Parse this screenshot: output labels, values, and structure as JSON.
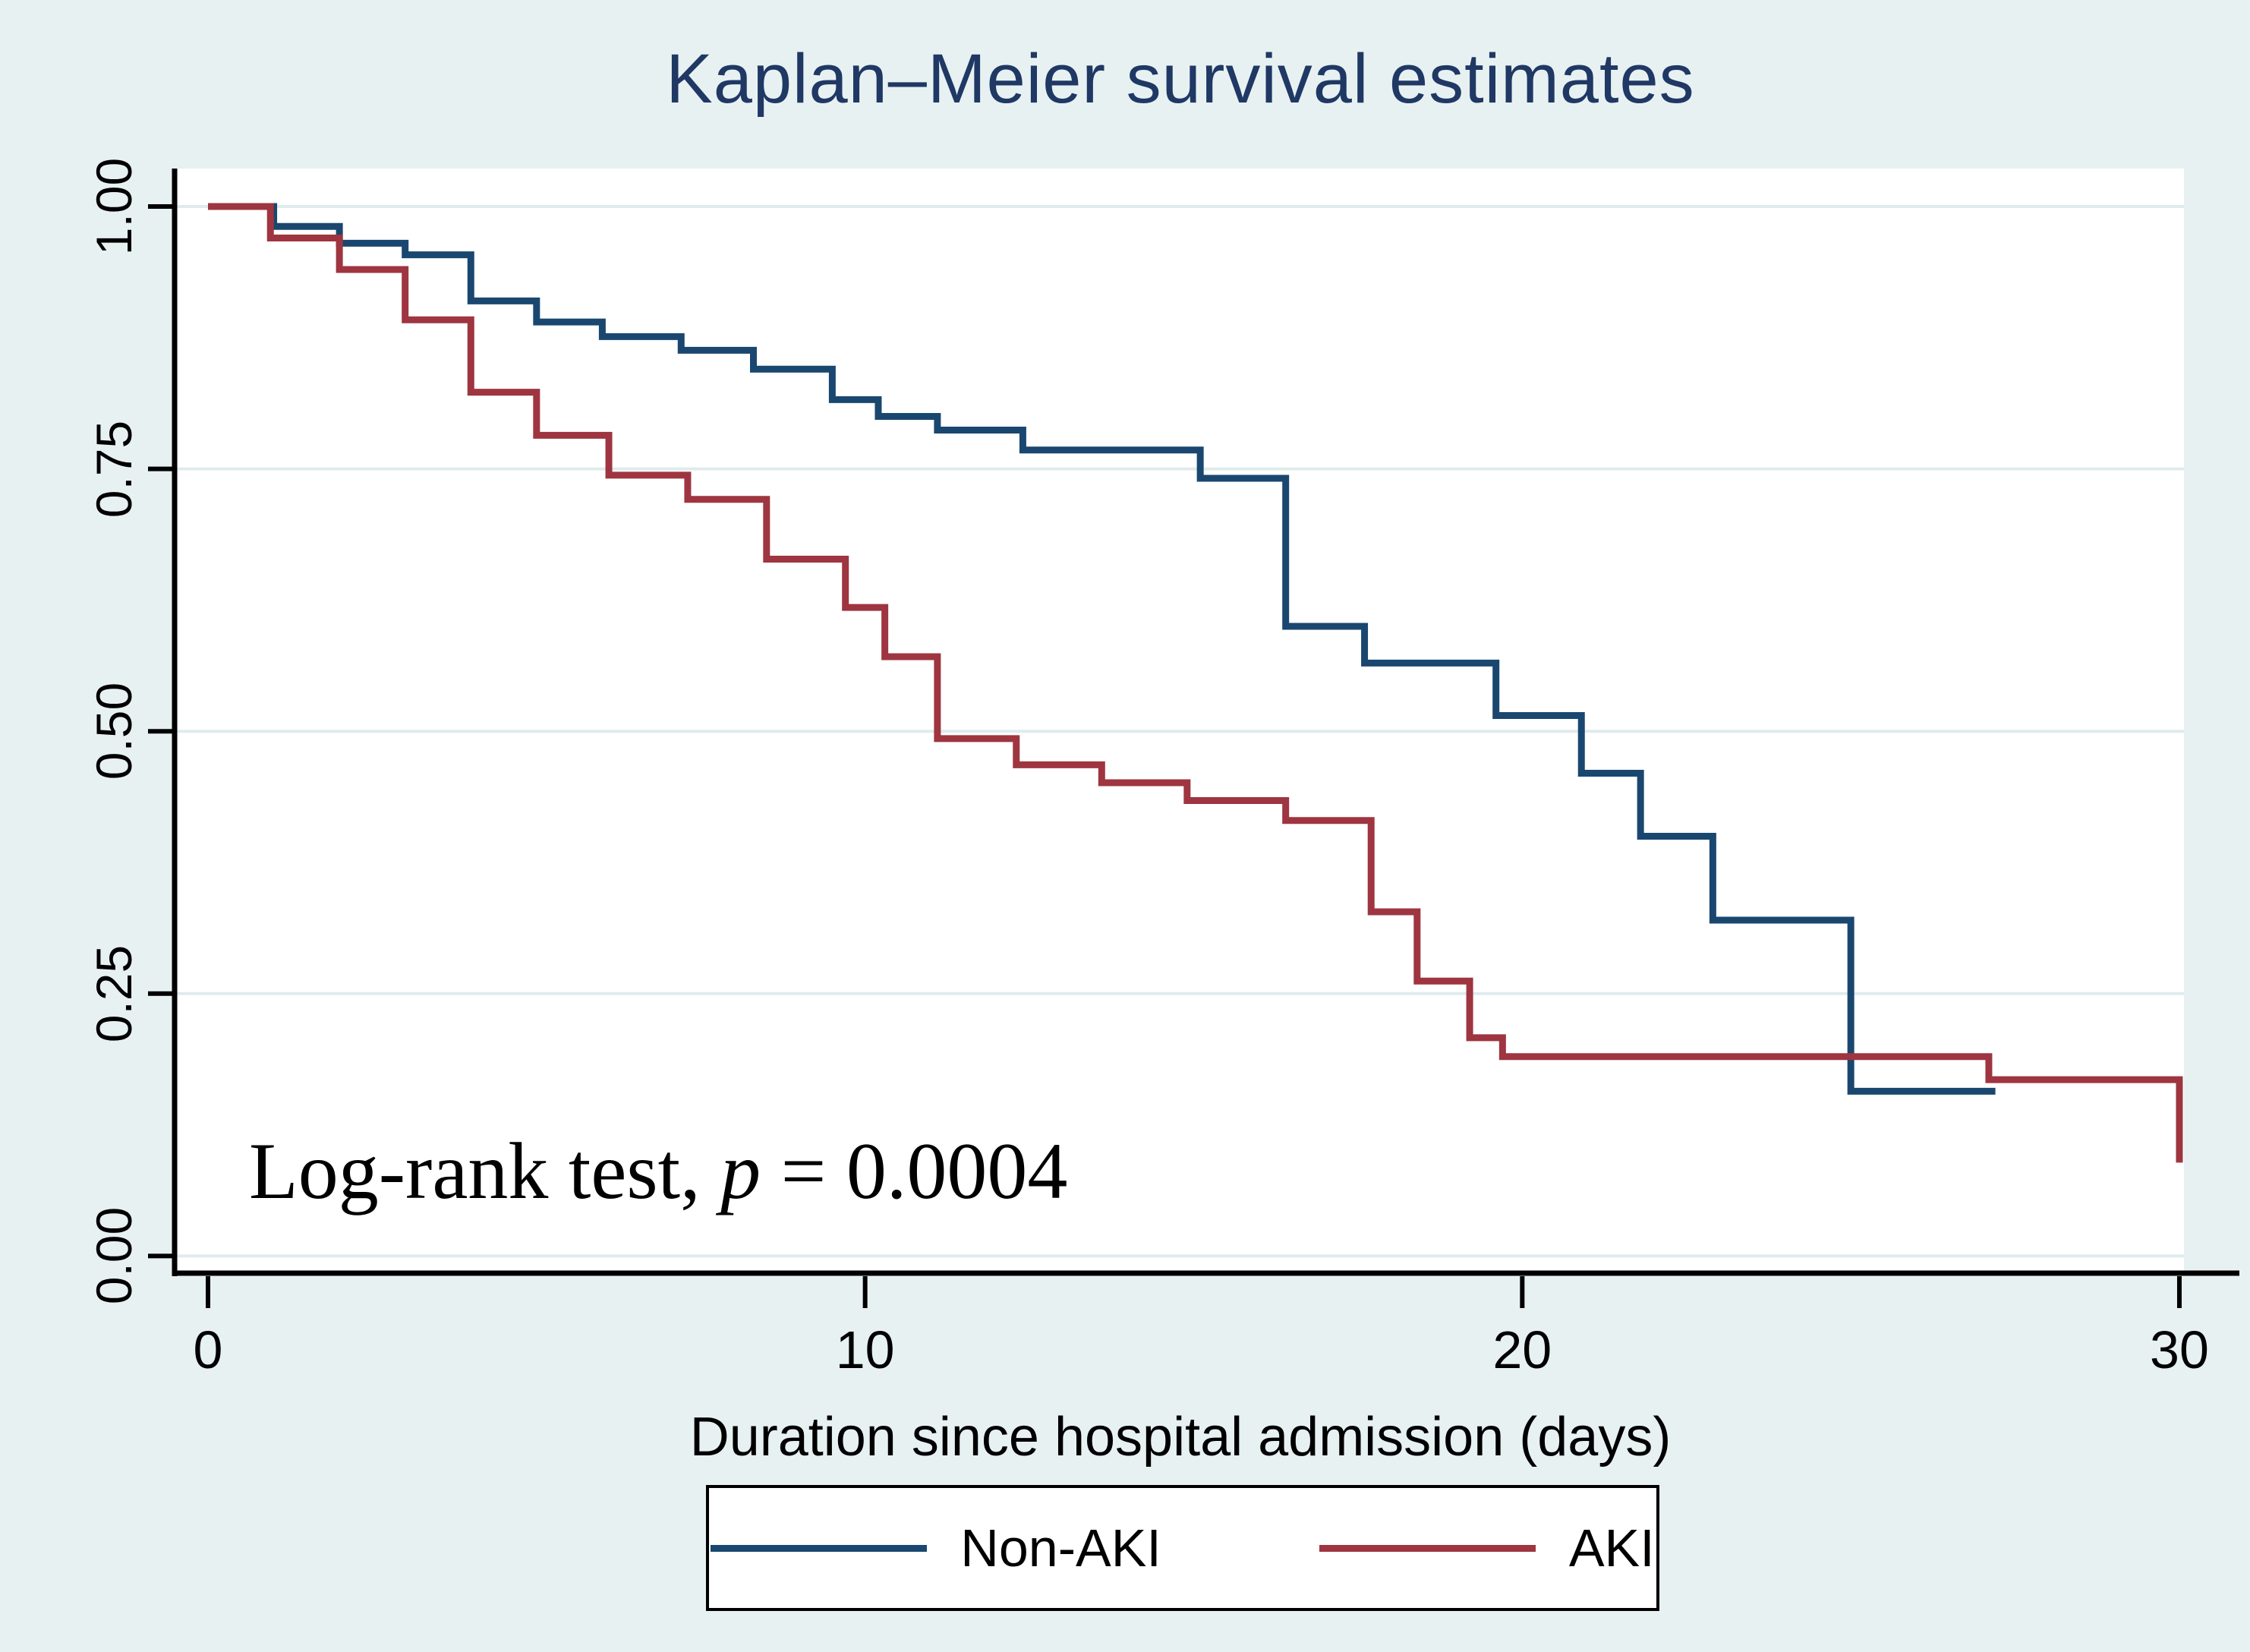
{
  "title": {
    "text": "Kaplan–Meier survival estimates",
    "color": "#1f3864"
  },
  "annotation": {
    "prefix": "Log-rank test, ",
    "italic_symbol": "p",
    "suffix": " = 0.0004"
  },
  "x_axis": {
    "label": "Duration since hospital admission (days)",
    "tick_labels": [
      "0",
      "10",
      "20",
      "30"
    ],
    "tick_values": [
      0,
      10,
      20,
      30
    ]
  },
  "y_axis": {
    "tick_labels": [
      "1.00",
      "0.75",
      "0.50",
      "0.25",
      "0.00"
    ],
    "tick_values": [
      1.0,
      0.75,
      0.5,
      0.25,
      0.0
    ]
  },
  "legend": {
    "entries": [
      {
        "label": "Non-AKI",
        "color": "#1a476f"
      },
      {
        "label": "AKI",
        "color": "#9e3540"
      }
    ]
  },
  "colors": {
    "canvas_bg": "#e8f1f2",
    "plot_bg": "#ffffff",
    "gridline": "#dfebed",
    "axis": "#000000",
    "title": "#1f3864",
    "non_aki": "#1a476f",
    "aki": "#9e3540"
  },
  "chart_data": {
    "type": "line",
    "variant": "kaplan-meier-step",
    "title": "Kaplan–Meier survival estimates",
    "xlabel": "Duration since hospital admission (days)",
    "ylabel": "",
    "xlim": [
      0,
      30
    ],
    "ylim": [
      0.0,
      1.0
    ],
    "x_ticks": [
      0,
      10,
      20,
      30
    ],
    "y_ticks": [
      0.0,
      0.25,
      0.5,
      0.75,
      1.0
    ],
    "grid": "horizontal",
    "legend_position": "bottom",
    "annotation": "Log-rank test, p = 0.0004",
    "series": [
      {
        "name": "Non-AKI",
        "color": "#1a476f",
        "start": [
          0,
          1.0
        ],
        "steps": [
          [
            1.0,
            0.981
          ],
          [
            2.0,
            0.965
          ],
          [
            3.0,
            0.954
          ],
          [
            4.0,
            0.91
          ],
          [
            5.0,
            0.89
          ],
          [
            6.0,
            0.876
          ],
          [
            7.2,
            0.863
          ],
          [
            8.3,
            0.845
          ],
          [
            9.5,
            0.816
          ],
          [
            10.2,
            0.8
          ],
          [
            11.1,
            0.787
          ],
          [
            12.4,
            0.768
          ],
          [
            15.1,
            0.741
          ],
          [
            16.4,
            0.6
          ],
          [
            17.6,
            0.565
          ],
          [
            19.6,
            0.515
          ],
          [
            20.9,
            0.46
          ],
          [
            21.8,
            0.4
          ],
          [
            22.9,
            0.32
          ],
          [
            25.0,
            0.157
          ]
        ],
        "end_day": 27.2
      },
      {
        "name": "AKI",
        "color": "#9e3540",
        "start": [
          0,
          1.0
        ],
        "steps": [
          [
            0.95,
            0.97
          ],
          [
            2.0,
            0.94
          ],
          [
            3.0,
            0.892
          ],
          [
            4.0,
            0.823
          ],
          [
            5.0,
            0.782
          ],
          [
            6.1,
            0.744
          ],
          [
            7.3,
            0.721
          ],
          [
            8.5,
            0.664
          ],
          [
            9.7,
            0.618
          ],
          [
            10.3,
            0.571
          ],
          [
            11.1,
            0.493
          ],
          [
            12.3,
            0.468
          ],
          [
            13.6,
            0.451
          ],
          [
            14.9,
            0.434
          ],
          [
            16.4,
            0.415
          ],
          [
            17.7,
            0.328
          ],
          [
            18.4,
            0.262
          ],
          [
            19.2,
            0.208
          ],
          [
            19.7,
            0.19
          ],
          [
            27.1,
            0.168
          ],
          [
            30.0,
            0.089
          ]
        ],
        "end_day": 30.0
      }
    ]
  }
}
